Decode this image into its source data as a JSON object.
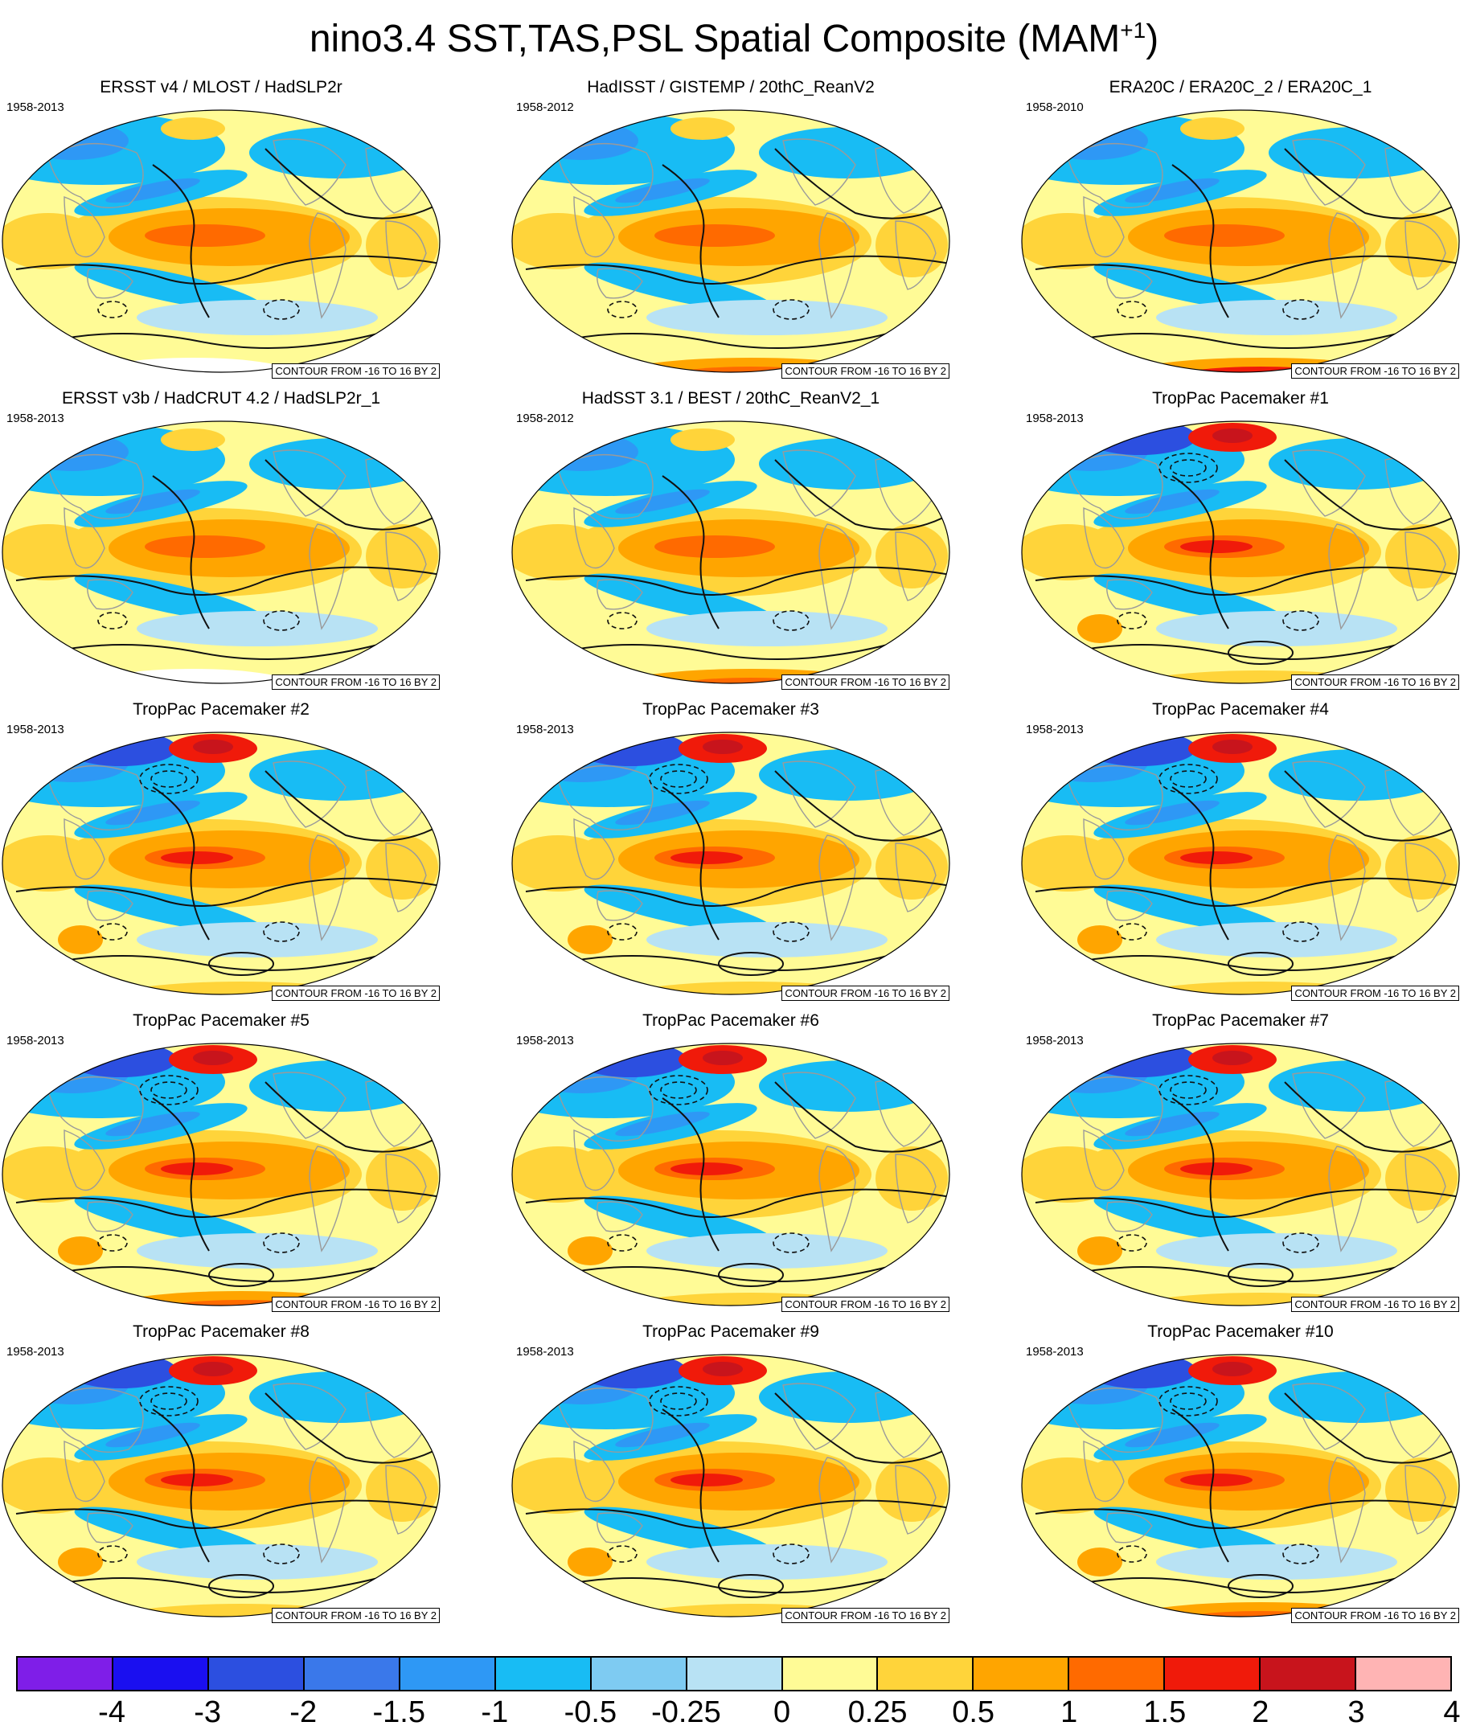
{
  "title": {
    "main": "nino3.4 SST,TAS,PSL Spatial Composite (MAM",
    "sup": "+1",
    "close": ")"
  },
  "contour_note": "CONTOUR FROM -16 TO 16 BY 2",
  "panels": [
    {
      "title": "ERSST v4 / MLOST / HadSLP2r",
      "period": "1958-2013",
      "southern_cap": "land_white"
    },
    {
      "title": "HadISST / GISTEMP / 20thC_ReanV2",
      "period": "1958-2012",
      "southern_cap": "warm"
    },
    {
      "title": "ERA20C / ERA20C_2 / ERA20C_1",
      "period": "1958-2010",
      "southern_cap": "very_warm"
    },
    {
      "title": "ERSST v3b / HadCRUT 4.2 / HadSLP2r_1",
      "period": "1958-2013",
      "southern_cap": "land_white"
    },
    {
      "title": "HadSST 3.1 / BEST / 20thC_ReanV2_1",
      "period": "1958-2012",
      "southern_cap": "warm"
    },
    {
      "title": "TropPac Pacemaker #1",
      "period": "1958-2013",
      "southern_cap": "mixed"
    },
    {
      "title": "TropPac Pacemaker #2",
      "period": "1958-2013",
      "southern_cap": "mixed"
    },
    {
      "title": "TropPac Pacemaker #3",
      "period": "1958-2013",
      "southern_cap": "mixed"
    },
    {
      "title": "TropPac Pacemaker #4",
      "period": "1958-2013",
      "southern_cap": "mixed"
    },
    {
      "title": "TropPac Pacemaker #5",
      "period": "1958-2013",
      "southern_cap": "warm"
    },
    {
      "title": "TropPac Pacemaker #6",
      "period": "1958-2013",
      "southern_cap": "mixed"
    },
    {
      "title": "TropPac Pacemaker #7",
      "period": "1958-2013",
      "southern_cap": "mixed"
    },
    {
      "title": "TropPac Pacemaker #8",
      "period": "1958-2013",
      "southern_cap": "mixed"
    },
    {
      "title": "TropPac Pacemaker #9",
      "period": "1958-2013",
      "southern_cap": "mixed"
    },
    {
      "title": "TropPac Pacemaker #10",
      "period": "1958-2013",
      "southern_cap": "warm"
    }
  ],
  "colorbar": {
    "labels": [
      "-4",
      "-3",
      "-2",
      "-1.5",
      "-1",
      "-0.5",
      "-0.25",
      "0",
      "0.25",
      "0.5",
      "1",
      "1.5",
      "2",
      "3",
      "4"
    ],
    "colors": [
      "#7f1ee8",
      "#1a0ff0",
      "#2c4fe0",
      "#3a78ea",
      "#2e98f5",
      "#18bcf4",
      "#7ecbf2",
      "#b8e2f4",
      "#fffb96",
      "#ffd43a",
      "#ffa500",
      "#ff6a00",
      "#f01a0a",
      "#c8141c",
      "#ffb4b4"
    ]
  }
}
